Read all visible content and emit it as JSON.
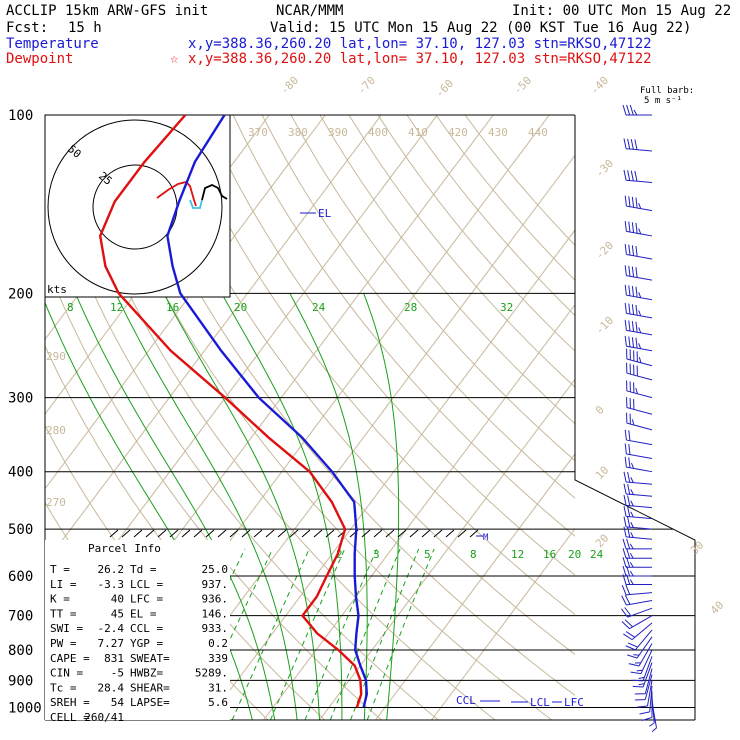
{
  "header": {
    "model": "ACCLIP 15km ARW-GFS init",
    "center": "NCAR/MMM",
    "init": "Init: 00 UTC Mon 15 Aug 22",
    "fcst_label": "Fcst:",
    "fcst_value": "15 h",
    "valid": "Valid: 15 UTC Mon 15 Aug 22 (00 KST Tue 16 Aug 22)",
    "temp_label": "Temperature",
    "temp_info": "x,y=388.36,260.20   lat,lon= 37.10, 127.03  stn=RKSO,47122",
    "dew_label": "Dewpoint",
    "dew_info": "x,y=388.36,260.20   lat,lon= 37.10, 127.03  stn=RKSO,47122",
    "dew_star": "☆",
    "barb_title": "Full barb:",
    "barb_unit": "5 m s⁻¹"
  },
  "hodograph": {
    "rings": [
      "50",
      "25"
    ],
    "unit": "kts"
  },
  "parcel": {
    "title": "Parcel Info",
    "rows": [
      [
        "T  =",
        "26.2",
        "Td =",
        "25.0"
      ],
      [
        "LI =",
        "-3.3",
        "LCL =",
        "937."
      ],
      [
        "K  =",
        "40",
        "LFC =",
        "936."
      ],
      [
        "TT =",
        "45",
        "EL  =",
        "146."
      ],
      [
        "SWI =",
        "-2.4",
        "CCL =",
        "933."
      ],
      [
        "PW =",
        "7.27",
        "YGP =",
        "0.2"
      ],
      [
        "CAPE =",
        "831",
        "SWEAT=",
        "339"
      ],
      [
        "CIN =",
        "-5",
        "HWBZ=",
        "5289."
      ],
      [
        "Tc =",
        "28.4",
        "SHEAR=",
        "31."
      ],
      [
        "SREH =",
        "54",
        "LAPSE=",
        "5.6"
      ],
      [
        "CELL =",
        "260/41",
        "",
        ""
      ]
    ]
  },
  "labels": {
    "el": "EL",
    "ccl": "CCL",
    "lcl": "LCL",
    "lfc": "LFC",
    "m": "M"
  },
  "colors": {
    "temperature": "#1a1ad6",
    "dewpoint": "#e01010",
    "isotherm": "#c8b89a",
    "mixing": "#1aa01a",
    "wind": "#2020c0",
    "cyan": "#40c0e0"
  },
  "chart_data": {
    "type": "line",
    "subtype": "skew-T log-p",
    "pressure_levels": [
      "100",
      "200",
      "300",
      "400",
      "500",
      "600",
      "700",
      "800",
      "900",
      "1000"
    ],
    "pressure_values": [
      100,
      200,
      300,
      400,
      500,
      600,
      700,
      800,
      900,
      1000
    ],
    "isotherm_labels": [
      "-80",
      "-70",
      "-60",
      "-50",
      "-40",
      "-30",
      "-20",
      "-10",
      "0",
      "10",
      "20",
      "30",
      "40"
    ],
    "isotherm_values": [
      -80,
      -70,
      -60,
      -50,
      -40,
      -30,
      -20,
      -10,
      0,
      10,
      20,
      30,
      40
    ],
    "theta_labels": [
      "370",
      "380",
      "390",
      "400",
      "410",
      "420",
      "430",
      "440"
    ],
    "theta_left_labels": [
      "290",
      "280",
      "270"
    ],
    "mixing_ratio_upper": [
      "8",
      "12",
      "16",
      "20",
      "24",
      "28",
      "32"
    ],
    "mixing_ratio_lower": [
      "2",
      "3",
      "5",
      "8",
      "12",
      "16",
      "20",
      "24"
    ],
    "series": [
      {
        "name": "Temperature",
        "points": [
          [
            100,
            -78
          ],
          [
            120,
            -77
          ],
          [
            140,
            -74.5
          ],
          [
            160,
            -72
          ],
          [
            180,
            -67
          ],
          [
            200,
            -62
          ],
          [
            250,
            -47
          ],
          [
            300,
            -34
          ],
          [
            350,
            -21
          ],
          [
            400,
            -11
          ],
          [
            450,
            -3
          ],
          [
            500,
            1
          ],
          [
            550,
            4
          ],
          [
            600,
            7
          ],
          [
            650,
            10
          ],
          [
            700,
            13
          ],
          [
            750,
            15
          ],
          [
            800,
            17
          ],
          [
            850,
            20
          ],
          [
            900,
            23
          ],
          [
            950,
            25
          ],
          [
            1000,
            26.2
          ]
        ]
      },
      {
        "name": "Dewpoint",
        "points": [
          [
            100,
            -85
          ],
          [
            120,
            -86
          ],
          [
            140,
            -86
          ],
          [
            160,
            -84
          ],
          [
            180,
            -79
          ],
          [
            200,
            -73
          ],
          [
            250,
            -56
          ],
          [
            300,
            -40
          ],
          [
            350,
            -27
          ],
          [
            400,
            -15
          ],
          [
            450,
            -7
          ],
          [
            500,
            -1
          ],
          [
            550,
            1
          ],
          [
            600,
            2
          ],
          [
            650,
            3
          ],
          [
            700,
            3
          ],
          [
            750,
            8
          ],
          [
            800,
            14
          ],
          [
            850,
            19
          ],
          [
            900,
            22
          ],
          [
            950,
            24
          ],
          [
            1000,
            25
          ]
        ]
      }
    ],
    "wind_barbs": [
      [
        100,
        270,
        35
      ],
      [
        115,
        275,
        40
      ],
      [
        130,
        275,
        40
      ],
      [
        145,
        280,
        45
      ],
      [
        160,
        280,
        45
      ],
      [
        175,
        280,
        40
      ],
      [
        190,
        280,
        40
      ],
      [
        205,
        280,
        45
      ],
      [
        220,
        280,
        45
      ],
      [
        235,
        280,
        45
      ],
      [
        250,
        280,
        45
      ],
      [
        265,
        285,
        45
      ],
      [
        280,
        285,
        40
      ],
      [
        300,
        285,
        35
      ],
      [
        320,
        285,
        30
      ],
      [
        340,
        285,
        25
      ],
      [
        360,
        280,
        20
      ],
      [
        380,
        280,
        20
      ],
      [
        400,
        280,
        25
      ],
      [
        420,
        275,
        25
      ],
      [
        440,
        275,
        25
      ],
      [
        460,
        275,
        25
      ],
      [
        480,
        275,
        25
      ],
      [
        500,
        275,
        25
      ],
      [
        520,
        275,
        25
      ],
      [
        540,
        270,
        25
      ],
      [
        560,
        270,
        25
      ],
      [
        580,
        270,
        25
      ],
      [
        600,
        270,
        25
      ],
      [
        620,
        270,
        25
      ],
      [
        640,
        265,
        20
      ],
      [
        660,
        260,
        20
      ],
      [
        680,
        250,
        20
      ],
      [
        700,
        240,
        20
      ],
      [
        720,
        230,
        20
      ],
      [
        740,
        220,
        20
      ],
      [
        760,
        215,
        15
      ],
      [
        780,
        210,
        15
      ],
      [
        800,
        205,
        15
      ],
      [
        820,
        200,
        15
      ],
      [
        840,
        200,
        15
      ],
      [
        860,
        195,
        10
      ],
      [
        880,
        195,
        10
      ],
      [
        900,
        190,
        10
      ],
      [
        920,
        185,
        10
      ],
      [
        940,
        180,
        10
      ],
      [
        960,
        175,
        5
      ],
      [
        980,
        170,
        5
      ]
    ]
  }
}
